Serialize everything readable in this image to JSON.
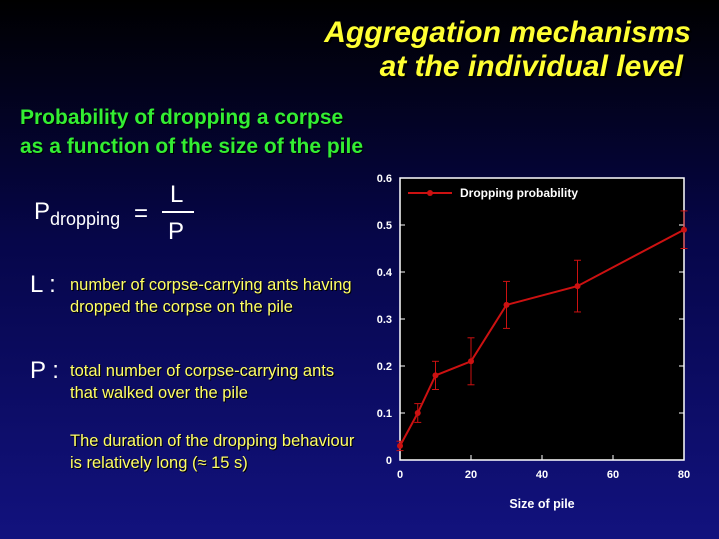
{
  "title": {
    "line1": "Aggregation mechanisms",
    "line2": "at the individual level"
  },
  "subtitle": {
    "line1": "Probability of dropping a corpse",
    "line2": "as a function of the size of the pile"
  },
  "formula": {
    "p": "P",
    "sub": "dropping",
    "eq": "=",
    "numerator": "L",
    "denominator": "P"
  },
  "definitions": {
    "l_key": "L :",
    "l_text": "number of corpse-carrying ants having dropped the corpse on the pile",
    "p_key": "P :",
    "p_text": "total number of corpse-carrying ants that walked over the pile",
    "note": "The duration of the dropping behaviour is relatively long (≈ 15 s)"
  },
  "colors": {
    "title": "#ffff33",
    "subtitle": "#33ee33",
    "text": "#ffff66",
    "series": "#cc1111",
    "panel": "#000000",
    "axis": "#ffffff"
  },
  "chart_data": {
    "type": "line",
    "xlabel": "Size of pile",
    "ylabel": "",
    "xlim": [
      0,
      80
    ],
    "ylim": [
      0,
      0.6
    ],
    "xticks": [
      0,
      20,
      40,
      60,
      80
    ],
    "yticks": [
      0,
      0.1,
      0.2,
      0.3,
      0.4,
      0.5,
      0.6
    ],
    "legend_position": "top-left",
    "grid": false,
    "series": [
      {
        "name": "Dropping probability",
        "x": [
          0,
          5,
          10,
          20,
          30,
          50,
          80
        ],
        "y": [
          0.03,
          0.1,
          0.18,
          0.21,
          0.33,
          0.37,
          0.49
        ],
        "err": [
          0.01,
          0.02,
          0.03,
          0.05,
          0.05,
          0.055,
          0.04
        ]
      }
    ]
  }
}
